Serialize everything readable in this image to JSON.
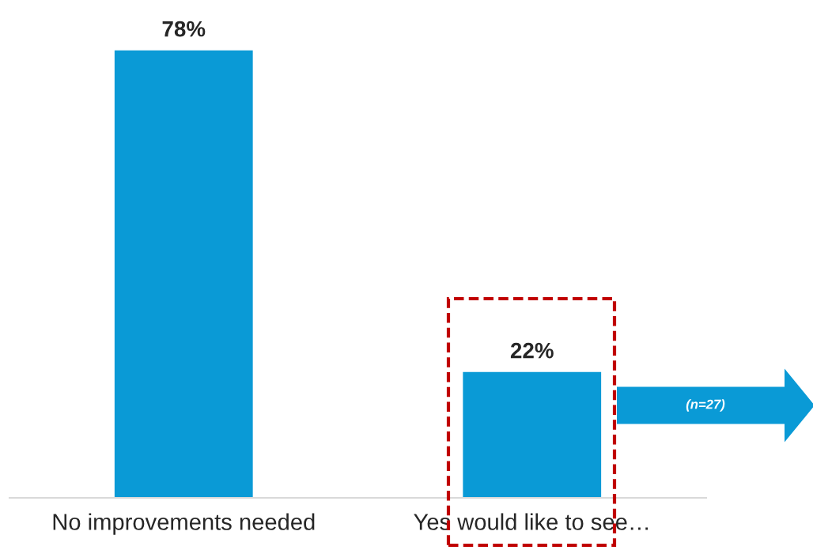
{
  "chart_data": {
    "type": "bar",
    "categories": [
      "No improvements needed",
      "Yes would like to see…"
    ],
    "values": [
      78,
      22
    ],
    "value_labels": [
      "78%",
      "22%"
    ],
    "color": "#0a9ad6",
    "tick_labels": "x",
    "grid": false,
    "legend": false,
    "annotations": [
      "(n=27)"
    ]
  }
}
